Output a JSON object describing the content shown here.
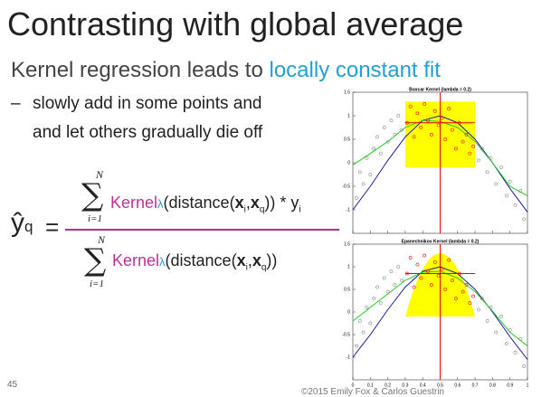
{
  "header": {
    "title": "Contrasting with global average"
  },
  "subtitle": {
    "text": "Kernel regression leads to ",
    "highlight": "locally constant fit"
  },
  "bullet": {
    "dash": "–",
    "lines": [
      "slowly add in some points and",
      "and let others gradually die off"
    ]
  },
  "formula": {
    "yhat": "ŷ",
    "q": "q",
    "eq": "=",
    "N": "N",
    "sigma": "∑",
    "from": "i=1",
    "kernel": "Kernel",
    "lambda": "λ",
    "open": "(distance(",
    "x": "x",
    "i": "i",
    "comma": ",",
    "close": "))",
    "times": " * y"
  },
  "figure": {
    "titles": [
      "Boxcar Kernel (lambda = 0.2)",
      "Epanechnikov Kernel (lambda = 0.2)"
    ],
    "xlim": [
      0,
      1
    ],
    "ylim": [
      -1.5,
      1.5
    ],
    "xticks": [
      0,
      0.1,
      0.2,
      0.3,
      0.4,
      0.5,
      0.6,
      0.7,
      0.8,
      0.9,
      1
    ],
    "yticks": [
      -1,
      -0.5,
      0,
      0.5,
      1,
      1.5
    ],
    "x": [
      0.02,
      0.04,
      0.06,
      0.08,
      0.1,
      0.12,
      0.14,
      0.16,
      0.18,
      0.2,
      0.22,
      0.24,
      0.26,
      0.28,
      0.31,
      0.33,
      0.35,
      0.37,
      0.39,
      0.41,
      0.43,
      0.45,
      0.47,
      0.49,
      0.51,
      0.53,
      0.55,
      0.57,
      0.59,
      0.61,
      0.63,
      0.65,
      0.67,
      0.69,
      0.72,
      0.74,
      0.77,
      0.79,
      0.82,
      0.85,
      0.88,
      0.9,
      0.93,
      0.96,
      0.98
    ],
    "y": [
      -0.75,
      -0.2,
      -0.45,
      0.1,
      -0.25,
      0.3,
      0.55,
      0.2,
      0.75,
      0.45,
      0.9,
      0.6,
      1.0,
      0.7,
      0.85,
      1.2,
      0.55,
      1.05,
      0.75,
      1.25,
      0.9,
      0.6,
      1.1,
      0.8,
      0.95,
      0.5,
      1.15,
      0.7,
      0.3,
      0.85,
      0.45,
      0.6,
      0.2,
      0.35,
      0.05,
      0.3,
      -0.2,
      0.1,
      -0.45,
      -0.1,
      -0.7,
      -0.4,
      -0.9,
      -0.6,
      -1.2
    ],
    "curve_x": [
      0,
      0.1,
      0.2,
      0.3,
      0.4,
      0.5,
      0.6,
      0.7,
      0.8,
      0.9,
      1
    ],
    "truth": [
      -1.0,
      -0.5,
      0.05,
      0.55,
      0.9,
      1.0,
      0.85,
      0.5,
      0.0,
      -0.55,
      -1.05
    ],
    "fits": [
      [
        -0.05,
        0.2,
        0.45,
        0.75,
        0.9,
        0.88,
        0.75,
        0.45,
        0.0,
        -0.5,
        -0.7
      ],
      [
        -0.2,
        0.1,
        0.4,
        0.7,
        0.88,
        0.9,
        0.75,
        0.45,
        0.02,
        -0.45,
        -0.75
      ]
    ]
  },
  "footer": {
    "page": "45",
    "copyright": "©2015 Emily Fox & Carlos Guestrin"
  }
}
